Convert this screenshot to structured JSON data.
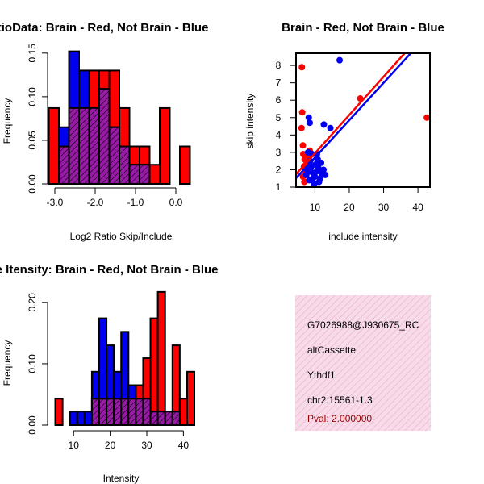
{
  "colors": {
    "red": "#ff0000",
    "blue": "#0000ee",
    "purple": "#9a1aa8",
    "stripe": "#000000",
    "box_bg": "#f7dbe9",
    "box_hatch": "#eeb4cf",
    "pval": "#990000"
  },
  "chart_data": [
    {
      "id": "ratio_hist",
      "type": "bar",
      "title": "RatioData: Brain - Red, Not Brain - Blue",
      "xlabel": "Log2 Ratio Skip/Include",
      "ylabel": "Frequency",
      "xlim": [
        -3.2,
        0.5
      ],
      "ylim": [
        0,
        0.16
      ],
      "xticks": [
        -3.0,
        -2.0,
        -1.0,
        0.0
      ],
      "xtick_labels": [
        "-3.0",
        "-2.0",
        "-1.0",
        "0.0"
      ],
      "yticks": [
        0.0,
        0.05,
        0.1,
        0.15
      ],
      "ytick_labels": [
        "0.00",
        "0.05",
        "0.10",
        "0.15"
      ],
      "bin_width": 0.25,
      "red_bins": [
        {
          "x0": -3.15,
          "v": 0.087
        },
        {
          "x0": -2.9,
          "v": 0.043
        },
        {
          "x0": -2.65,
          "v": 0.087
        },
        {
          "x0": -2.4,
          "v": 0.087
        },
        {
          "x0": -2.15,
          "v": 0.13
        },
        {
          "x0": -1.9,
          "v": 0.13
        },
        {
          "x0": -1.65,
          "v": 0.13
        },
        {
          "x0": -1.4,
          "v": 0.087
        },
        {
          "x0": -1.15,
          "v": 0.043
        },
        {
          "x0": -0.9,
          "v": 0.043
        },
        {
          "x0": -0.65,
          "v": 0.022
        },
        {
          "x0": -0.4,
          "v": 0.087
        },
        {
          "x0": -0.15,
          "v": 0.0
        },
        {
          "x0": 0.1,
          "v": 0.043
        }
      ],
      "blue_bins": [
        {
          "x0": -3.15,
          "v": 0.0
        },
        {
          "x0": -2.9,
          "v": 0.065
        },
        {
          "x0": -2.65,
          "v": 0.152
        },
        {
          "x0": -2.4,
          "v": 0.13
        },
        {
          "x0": -2.15,
          "v": 0.087
        },
        {
          "x0": -1.9,
          "v": 0.109
        },
        {
          "x0": -1.65,
          "v": 0.065
        },
        {
          "x0": -1.4,
          "v": 0.043
        },
        {
          "x0": -1.15,
          "v": 0.022
        },
        {
          "x0": -0.9,
          "v": 0.022
        }
      ]
    },
    {
      "id": "scatter",
      "type": "scatter",
      "title": "Brain - Red, Not Brain - Blue",
      "xlabel": "include intensity",
      "ylabel": "skip intensity",
      "xlim": [
        4.5,
        43.5
      ],
      "ylim": [
        1,
        8.7
      ],
      "xticks": [
        10,
        20,
        30,
        40
      ],
      "xtick_labels": [
        "10",
        "20",
        "30",
        "40"
      ],
      "yticks": [
        1,
        2,
        3,
        4,
        5,
        6,
        7,
        8
      ],
      "ytick_labels": [
        "1",
        "2",
        "3",
        "4",
        "5",
        "6",
        "7",
        "8"
      ],
      "red_points": [
        [
          6.2,
          7.9
        ],
        [
          6.3,
          5.3
        ],
        [
          6.1,
          4.4
        ],
        [
          23.2,
          6.1
        ],
        [
          42.6,
          5.0
        ],
        [
          6.5,
          3.4
        ],
        [
          6.6,
          2.9
        ],
        [
          7.0,
          2.6
        ],
        [
          6.8,
          2.2
        ],
        [
          7.2,
          1.9
        ],
        [
          6.5,
          1.6
        ],
        [
          7.6,
          2.4
        ],
        [
          8.0,
          2.7
        ],
        [
          8.5,
          3.1
        ],
        [
          6.9,
          1.3
        ]
      ],
      "blue_points": [
        [
          17.2,
          8.3
        ],
        [
          8.2,
          5.0
        ],
        [
          8.5,
          4.7
        ],
        [
          12.6,
          4.6
        ],
        [
          14.5,
          4.4
        ],
        [
          8.0,
          3.0
        ],
        [
          8.6,
          2.5
        ],
        [
          9.0,
          2.2
        ],
        [
          9.5,
          1.8
        ],
        [
          10.0,
          1.6
        ],
        [
          10.5,
          1.9
        ],
        [
          11.0,
          2.1
        ],
        [
          11.5,
          1.5
        ],
        [
          12.0,
          1.8
        ],
        [
          9.2,
          2.9
        ],
        [
          10.8,
          2.6
        ],
        [
          8.3,
          1.4
        ],
        [
          9.8,
          1.2
        ],
        [
          12.5,
          2.0
        ],
        [
          7.8,
          2.0
        ],
        [
          11.8,
          2.4
        ],
        [
          9.4,
          1.5
        ],
        [
          10.2,
          2.3
        ],
        [
          8.8,
          1.9
        ],
        [
          13.0,
          1.7
        ],
        [
          7.5,
          1.7
        ],
        [
          11.2,
          1.3
        ],
        [
          10.6,
          2.9
        ]
      ],
      "red_line": {
        "intercept": 0.75,
        "slope": 0.22
      },
      "blue_line": {
        "intercept": 0.55,
        "slope": 0.215
      }
    },
    {
      "id": "intensity_hist",
      "type": "bar",
      "title": "Gene Itensity: Brain - Red, Not Brain - Blue",
      "xlabel": "Intensity",
      "ylabel": "Frequency",
      "xlim": [
        4,
        43
      ],
      "ylim": [
        0,
        0.23
      ],
      "xticks": [
        10,
        20,
        30,
        40
      ],
      "xtick_labels": [
        "10",
        "20",
        "30",
        "40"
      ],
      "yticks": [
        0.0,
        0.1,
        0.2
      ],
      "ytick_labels": [
        "0.00",
        "0.10",
        "0.20"
      ],
      "bin_width": 2,
      "red_bins": [
        {
          "x0": 5,
          "v": 0.043
        },
        {
          "x0": 7,
          "v": 0.0
        },
        {
          "x0": 9,
          "v": 0.0
        },
        {
          "x0": 11,
          "v": 0.0
        },
        {
          "x0": 13,
          "v": 0.0
        },
        {
          "x0": 15,
          "v": 0.043
        },
        {
          "x0": 17,
          "v": 0.043
        },
        {
          "x0": 19,
          "v": 0.043
        },
        {
          "x0": 21,
          "v": 0.043
        },
        {
          "x0": 23,
          "v": 0.043
        },
        {
          "x0": 25,
          "v": 0.043
        },
        {
          "x0": 27,
          "v": 0.065
        },
        {
          "x0": 29,
          "v": 0.109
        },
        {
          "x0": 31,
          "v": 0.174
        },
        {
          "x0": 33,
          "v": 0.217
        },
        {
          "x0": 35,
          "v": 0.022
        },
        {
          "x0": 37,
          "v": 0.13
        },
        {
          "x0": 39,
          "v": 0.043
        },
        {
          "x0": 41,
          "v": 0.087
        }
      ],
      "blue_bins": [
        {
          "x0": 5,
          "v": 0.0
        },
        {
          "x0": 7,
          "v": 0.0
        },
        {
          "x0": 9,
          "v": 0.022
        },
        {
          "x0": 11,
          "v": 0.022
        },
        {
          "x0": 13,
          "v": 0.022
        },
        {
          "x0": 15,
          "v": 0.087
        },
        {
          "x0": 17,
          "v": 0.174
        },
        {
          "x0": 19,
          "v": 0.13
        },
        {
          "x0": 21,
          "v": 0.087
        },
        {
          "x0": 23,
          "v": 0.152
        },
        {
          "x0": 25,
          "v": 0.065
        },
        {
          "x0": 27,
          "v": 0.043
        },
        {
          "x0": 29,
          "v": 0.043
        },
        {
          "x0": 31,
          "v": 0.022
        },
        {
          "x0": 33,
          "v": 0.022
        },
        {
          "x0": 35,
          "v": 0.022
        },
        {
          "x0": 37,
          "v": 0.022
        }
      ]
    }
  ],
  "info_box": {
    "probe_id": "G7026988@J930675_RC",
    "event_type": "altCassette",
    "gene": "Ythdf1",
    "location": "chr2.15561-1.3",
    "pval": "Pval: 2.000000"
  }
}
